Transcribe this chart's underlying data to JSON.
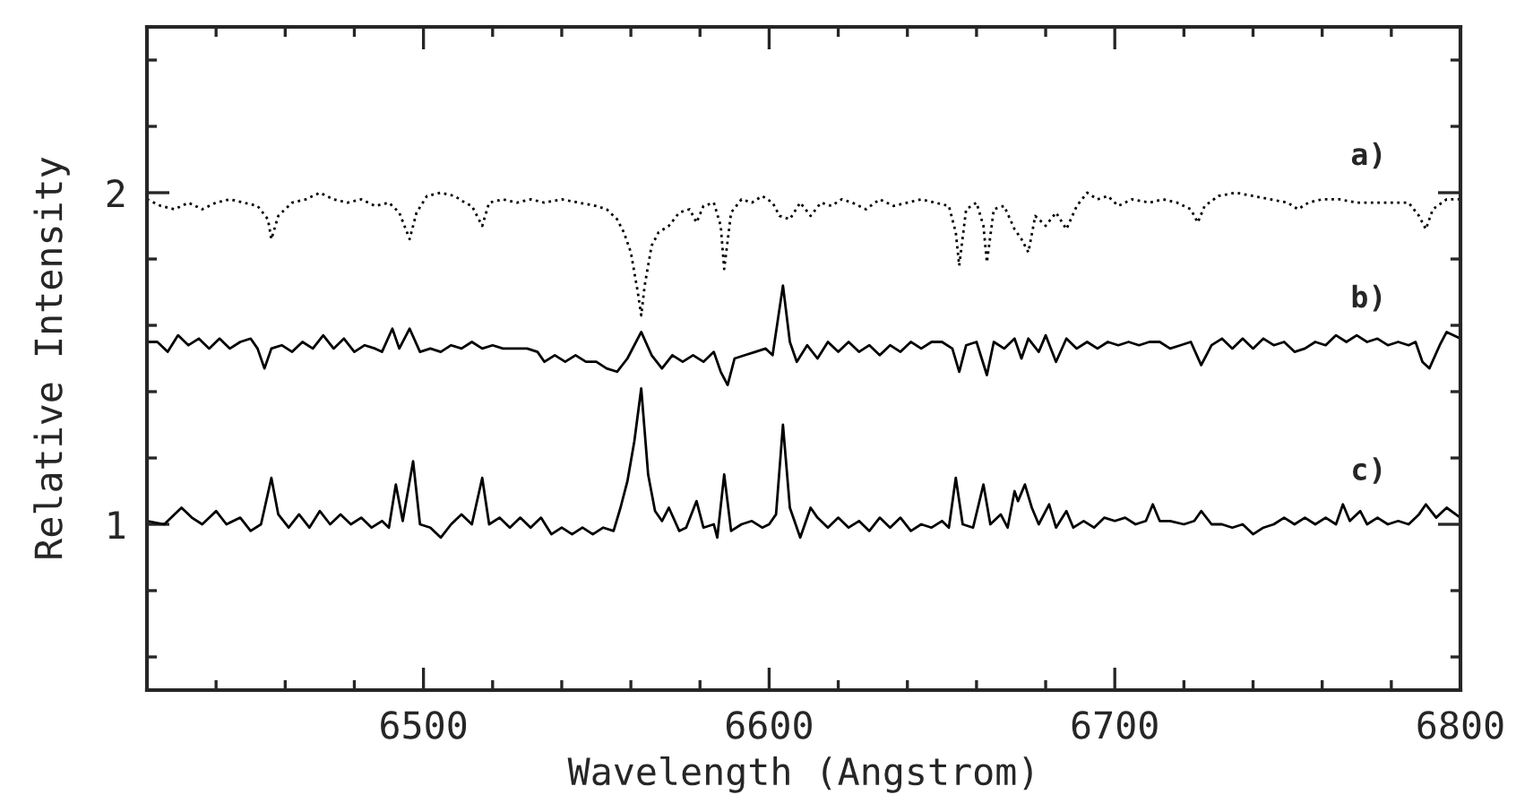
{
  "chart_data": {
    "type": "line",
    "xlabel": "Wavelength (Angstrom)",
    "ylabel": "Relative Intensity",
    "xlim": [
      6420,
      6800
    ],
    "ylim": [
      0.5,
      2.5
    ],
    "xticks": [
      {
        "value": 6440,
        "label": null
      },
      {
        "value": 6460,
        "label": null
      },
      {
        "value": 6480,
        "label": null
      },
      6500,
      {
        "value": 6520,
        "label": null
      },
      {
        "value": 6540,
        "label": null
      },
      {
        "value": 6560,
        "label": null
      },
      {
        "value": 6580,
        "label": null
      },
      6600,
      {
        "value": 6620,
        "label": null
      },
      {
        "value": 6640,
        "label": null
      },
      {
        "value": 6660,
        "label": null
      },
      {
        "value": 6680,
        "label": null
      },
      6700,
      {
        "value": 6720,
        "label": null
      },
      {
        "value": 6740,
        "label": null
      },
      {
        "value": 6760,
        "label": null
      },
      {
        "value": 6780,
        "label": null
      },
      6800
    ],
    "yticks": [
      {
        "value": 0.6,
        "label": null
      },
      {
        "value": 0.8,
        "label": null
      },
      1,
      {
        "value": 1.2,
        "label": null
      },
      {
        "value": 1.4,
        "label": null
      },
      {
        "value": 1.6,
        "label": null
      },
      {
        "value": 1.8,
        "label": null
      },
      2,
      {
        "value": 2.2,
        "label": null
      },
      {
        "value": 2.4,
        "label": null
      }
    ],
    "grid": false,
    "legend": false,
    "series": [
      {
        "name": "a)",
        "color": "#000000",
        "line_style": "dotted",
        "x": [
          6420,
          6424,
          6428,
          6432,
          6436,
          6440,
          6444,
          6448,
          6452,
          6455,
          6456,
          6458,
          6462,
          6466,
          6470,
          6474,
          6478,
          6482,
          6486,
          6490,
          6493,
          6496,
          6498,
          6501,
          6505,
          6509,
          6512,
          6514,
          6517,
          6519,
          6523,
          6527,
          6531,
          6535,
          6540,
          6545,
          6550,
          6553,
          6556,
          6558,
          6560,
          6562,
          6563,
          6564,
          6566,
          6568,
          6571,
          6574,
          6577,
          6579,
          6581,
          6584,
          6586,
          6587,
          6589,
          6592,
          6595,
          6598,
          6601,
          6603,
          6606,
          6609,
          6612,
          6615,
          6618,
          6621,
          6624,
          6628,
          6632,
          6636,
          6640,
          6644,
          6648,
          6652,
          6654,
          6655,
          6657,
          6660,
          6662,
          6663,
          6665,
          6668,
          6671,
          6673,
          6675,
          6677,
          6680,
          6683,
          6686,
          6689,
          6692,
          6695,
          6698,
          6701,
          6705,
          6710,
          6714,
          6718,
          6722,
          6724,
          6726,
          6730,
          6735,
          6740,
          6745,
          6750,
          6753,
          6756,
          6760,
          6765,
          6770,
          6775,
          6780,
          6785,
          6788,
          6790,
          6792,
          6796,
          6800
        ],
        "values": [
          1.98,
          1.96,
          1.95,
          1.97,
          1.95,
          1.97,
          1.98,
          1.97,
          1.96,
          1.92,
          1.86,
          1.93,
          1.97,
          1.98,
          2.0,
          1.98,
          1.97,
          1.98,
          1.96,
          1.97,
          1.94,
          1.86,
          1.94,
          1.99,
          2.0,
          1.99,
          1.97,
          1.96,
          1.9,
          1.97,
          1.98,
          1.97,
          1.98,
          1.97,
          1.98,
          1.97,
          1.96,
          1.95,
          1.92,
          1.88,
          1.82,
          1.7,
          1.63,
          1.72,
          1.84,
          1.88,
          1.9,
          1.94,
          1.95,
          1.91,
          1.96,
          1.97,
          1.9,
          1.77,
          1.94,
          1.98,
          1.97,
          1.99,
          1.97,
          1.93,
          1.92,
          1.97,
          1.93,
          1.97,
          1.96,
          1.98,
          1.97,
          1.95,
          1.98,
          1.96,
          1.97,
          1.98,
          1.97,
          1.96,
          1.88,
          1.78,
          1.95,
          1.97,
          1.9,
          1.79,
          1.95,
          1.96,
          1.89,
          1.86,
          1.82,
          1.93,
          1.9,
          1.94,
          1.89,
          1.96,
          2.0,
          1.98,
          1.99,
          1.96,
          1.98,
          1.97,
          1.98,
          1.97,
          1.95,
          1.91,
          1.96,
          1.99,
          2.0,
          1.99,
          1.98,
          1.97,
          1.95,
          1.97,
          1.98,
          1.98,
          1.97,
          1.97,
          1.97,
          1.97,
          1.93,
          1.89,
          1.95,
          1.98,
          1.98
        ]
      },
      {
        "name": "b)",
        "color": "#000000",
        "line_style": "solid",
        "x": [
          6420,
          6423,
          6426,
          6429,
          6432,
          6435,
          6438,
          6441,
          6444,
          6447,
          6450,
          6452,
          6454,
          6456,
          6459,
          6462,
          6465,
          6468,
          6471,
          6474,
          6477,
          6480,
          6483,
          6486,
          6488,
          6491,
          6493,
          6496,
          6499,
          6502,
          6505,
          6508,
          6511,
          6514,
          6517,
          6520,
          6523,
          6526,
          6530,
          6533,
          6535,
          6538,
          6541,
          6544,
          6547,
          6550,
          6553,
          6556,
          6559,
          6563,
          6566,
          6569,
          6572,
          6575,
          6578,
          6581,
          6584,
          6586,
          6588,
          6590,
          6593,
          6596,
          6599,
          6601,
          6604,
          6606,
          6608,
          6611,
          6614,
          6617,
          6620,
          6623,
          6626,
          6629,
          6632,
          6635,
          6638,
          6641,
          6644,
          6647,
          6650,
          6653,
          6655,
          6657,
          6660,
          6663,
          6665,
          6668,
          6671,
          6673,
          6675,
          6678,
          6680,
          6683,
          6686,
          6689,
          6692,
          6695,
          6698,
          6701,
          6704,
          6707,
          6710,
          6713,
          6716,
          6719,
          6722,
          6725,
          6728,
          6731,
          6734,
          6737,
          6740,
          6743,
          6746,
          6749,
          6752,
          6755,
          6758,
          6761,
          6764,
          6767,
          6770,
          6773,
          6776,
          6779,
          6782,
          6785,
          6787,
          6789,
          6791,
          6794,
          6796,
          6800
        ],
        "values": [
          1.55,
          1.55,
          1.52,
          1.57,
          1.54,
          1.56,
          1.53,
          1.56,
          1.53,
          1.55,
          1.56,
          1.53,
          1.47,
          1.53,
          1.54,
          1.52,
          1.55,
          1.53,
          1.57,
          1.53,
          1.56,
          1.52,
          1.54,
          1.53,
          1.52,
          1.59,
          1.53,
          1.59,
          1.52,
          1.53,
          1.52,
          1.54,
          1.53,
          1.55,
          1.53,
          1.54,
          1.53,
          1.53,
          1.53,
          1.52,
          1.49,
          1.51,
          1.49,
          1.51,
          1.49,
          1.49,
          1.47,
          1.46,
          1.5,
          1.58,
          1.51,
          1.47,
          1.51,
          1.49,
          1.51,
          1.49,
          1.52,
          1.46,
          1.42,
          1.5,
          1.51,
          1.52,
          1.53,
          1.51,
          1.72,
          1.55,
          1.49,
          1.54,
          1.5,
          1.55,
          1.52,
          1.55,
          1.52,
          1.54,
          1.51,
          1.54,
          1.52,
          1.55,
          1.53,
          1.55,
          1.55,
          1.53,
          1.46,
          1.54,
          1.55,
          1.45,
          1.55,
          1.53,
          1.56,
          1.5,
          1.56,
          1.52,
          1.57,
          1.49,
          1.56,
          1.53,
          1.55,
          1.53,
          1.55,
          1.54,
          1.55,
          1.54,
          1.55,
          1.55,
          1.53,
          1.54,
          1.55,
          1.48,
          1.54,
          1.56,
          1.53,
          1.56,
          1.53,
          1.56,
          1.54,
          1.55,
          1.52,
          1.53,
          1.55,
          1.54,
          1.57,
          1.55,
          1.57,
          1.55,
          1.56,
          1.54,
          1.55,
          1.54,
          1.55,
          1.49,
          1.47,
          1.54,
          1.58,
          1.56
        ]
      },
      {
        "name": "c)",
        "color": "#000000",
        "line_style": "solid",
        "x": [
          6420,
          6425,
          6430,
          6433,
          6436,
          6440,
          6443,
          6447,
          6450,
          6453,
          6456,
          6458,
          6461,
          6464,
          6467,
          6470,
          6473,
          6476,
          6479,
          6482,
          6485,
          6488,
          6490,
          6492,
          6494,
          6497,
          6499,
          6502,
          6505,
          6508,
          6511,
          6514,
          6517,
          6519,
          6522,
          6525,
          6528,
          6531,
          6534,
          6537,
          6540,
          6543,
          6546,
          6549,
          6552,
          6555,
          6557,
          6559,
          6561,
          6563,
          6565,
          6567,
          6569,
          6571,
          6574,
          6576,
          6579,
          6581,
          6584,
          6585,
          6587,
          6589,
          6592,
          6595,
          6598,
          6600,
          6602,
          6604,
          6606,
          6609,
          6612,
          6614,
          6617,
          6620,
          6623,
          6626,
          6629,
          6632,
          6635,
          6638,
          6641,
          6644,
          6647,
          6650,
          6652,
          6654,
          6656,
          6659,
          6662,
          6664,
          6667,
          6669,
          6671,
          6672,
          6674,
          6676,
          6678,
          6681,
          6683,
          6686,
          6688,
          6691,
          6694,
          6697,
          6700,
          6703,
          6706,
          6709,
          6711,
          6713,
          6716,
          6720,
          6723,
          6725,
          6728,
          6731,
          6734,
          6737,
          6740,
          6743,
          6746,
          6749,
          6752,
          6755,
          6758,
          6761,
          6764,
          6766,
          6768,
          6771,
          6773,
          6776,
          6779,
          6782,
          6785,
          6788,
          6790,
          6793,
          6796,
          6800
        ],
        "values": [
          1.01,
          1.0,
          1.05,
          1.02,
          1.0,
          1.04,
          1.0,
          1.02,
          0.98,
          1.0,
          1.14,
          1.03,
          0.99,
          1.03,
          0.99,
          1.04,
          1.0,
          1.03,
          1.0,
          1.02,
          0.99,
          1.01,
          0.99,
          1.12,
          1.01,
          1.19,
          1.0,
          0.99,
          0.96,
          1.0,
          1.03,
          1.0,
          1.14,
          1.0,
          1.02,
          0.99,
          1.02,
          0.99,
          1.02,
          0.97,
          0.99,
          0.97,
          0.99,
          0.97,
          0.99,
          0.98,
          1.05,
          1.13,
          1.25,
          1.41,
          1.15,
          1.04,
          1.01,
          1.05,
          0.98,
          0.99,
          1.07,
          0.99,
          1.0,
          0.96,
          1.15,
          0.98,
          1.0,
          1.01,
          0.99,
          1.0,
          1.03,
          1.3,
          1.05,
          0.96,
          1.05,
          1.02,
          0.99,
          1.02,
          0.99,
          1.01,
          0.98,
          1.02,
          0.99,
          1.02,
          0.98,
          1.0,
          0.99,
          1.01,
          0.99,
          1.14,
          1.0,
          0.99,
          1.12,
          1.0,
          1.03,
          0.99,
          1.1,
          1.07,
          1.12,
          1.05,
          1.0,
          1.06,
          0.99,
          1.04,
          0.99,
          1.01,
          0.99,
          1.02,
          1.01,
          1.02,
          1.0,
          1.01,
          1.06,
          1.01,
          1.01,
          1.0,
          1.01,
          1.04,
          1.0,
          1.0,
          0.99,
          1.0,
          0.97,
          0.99,
          1.0,
          1.02,
          1.0,
          1.02,
          1.0,
          1.02,
          1.0,
          1.06,
          1.01,
          1.04,
          1.0,
          1.02,
          1.0,
          1.01,
          1.0,
          1.03,
          1.06,
          1.02,
          1.05,
          1.02
        ]
      }
    ]
  }
}
